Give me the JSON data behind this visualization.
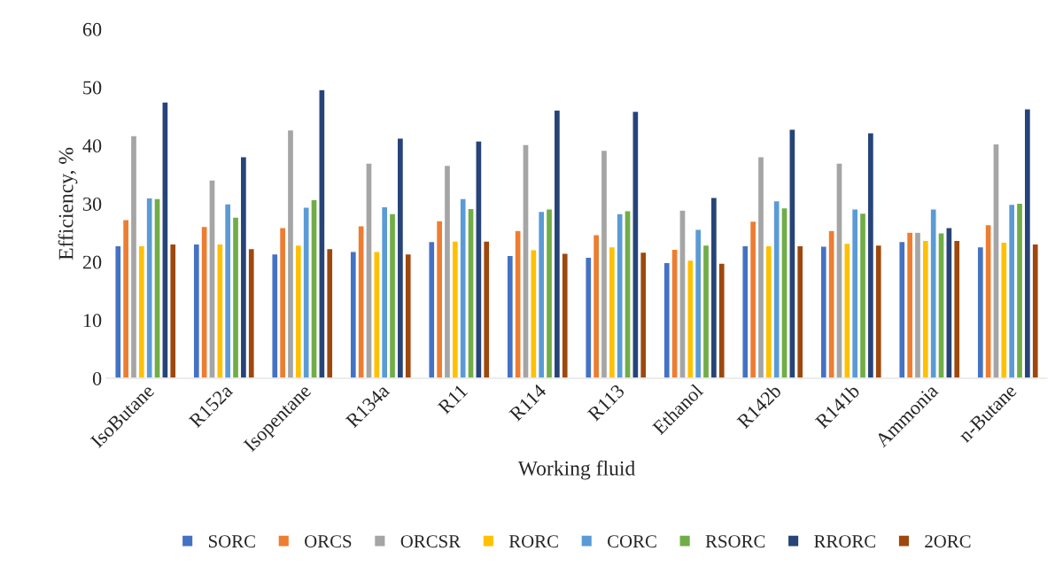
{
  "chart_data": {
    "type": "bar",
    "xlabel": "Working fluid",
    "ylabel": "Efficiency, %",
    "categories": [
      "IsoButane",
      "R152a",
      "Isopentane",
      "R134a",
      "R11",
      "R114",
      "R113",
      "Ethanol",
      "R142b",
      "R141b",
      "Ammonia",
      "n-Butane"
    ],
    "series": [
      {
        "name": "SORC",
        "color": "#4472c4",
        "values": [
          22.8,
          23.1,
          21.4,
          21.8,
          23.5,
          21.1,
          20.8,
          19.9,
          22.8,
          22.7,
          23.5,
          22.6
        ]
      },
      {
        "name": "ORCS",
        "color": "#ed7d31",
        "values": [
          27.3,
          26.1,
          25.9,
          26.2,
          27.1,
          25.4,
          24.7,
          22.2,
          27.0,
          25.4,
          25.1,
          26.4
        ]
      },
      {
        "name": "ORCSR",
        "color": "#a5a5a5",
        "values": [
          41.7,
          34.1,
          42.7,
          37.0,
          36.6,
          40.2,
          39.2,
          28.9,
          38.1,
          37.0,
          25.1,
          40.3
        ]
      },
      {
        "name": "RORC",
        "color": "#ffc000",
        "values": [
          22.8,
          23.1,
          22.9,
          21.8,
          23.6,
          22.1,
          22.6,
          20.3,
          22.8,
          23.2,
          23.7,
          23.4
        ]
      },
      {
        "name": "CORC",
        "color": "#5b9bd5",
        "values": [
          31.0,
          30.0,
          29.4,
          29.5,
          30.9,
          28.7,
          28.3,
          25.6,
          30.5,
          29.1,
          29.1,
          29.9
        ]
      },
      {
        "name": "RSORC",
        "color": "#70ad47",
        "values": [
          30.9,
          27.7,
          30.7,
          28.3,
          29.2,
          29.1,
          28.8,
          22.9,
          29.3,
          28.4,
          25.0,
          30.1
        ]
      },
      {
        "name": "RRORC",
        "color": "#264478",
        "values": [
          47.5,
          38.1,
          49.6,
          41.3,
          40.8,
          46.1,
          45.9,
          31.1,
          42.8,
          42.2,
          25.9,
          46.3
        ]
      },
      {
        "name": "2ORC",
        "color": "#9e480e",
        "values": [
          23.1,
          22.3,
          22.3,
          21.4,
          23.6,
          21.5,
          21.7,
          19.8,
          22.8,
          22.9,
          23.7,
          23.1
        ]
      }
    ],
    "ylim": [
      0,
      60
    ],
    "yticks": [
      0,
      10,
      20,
      30,
      40,
      50,
      60
    ],
    "grid": false,
    "legend": "bottom"
  }
}
